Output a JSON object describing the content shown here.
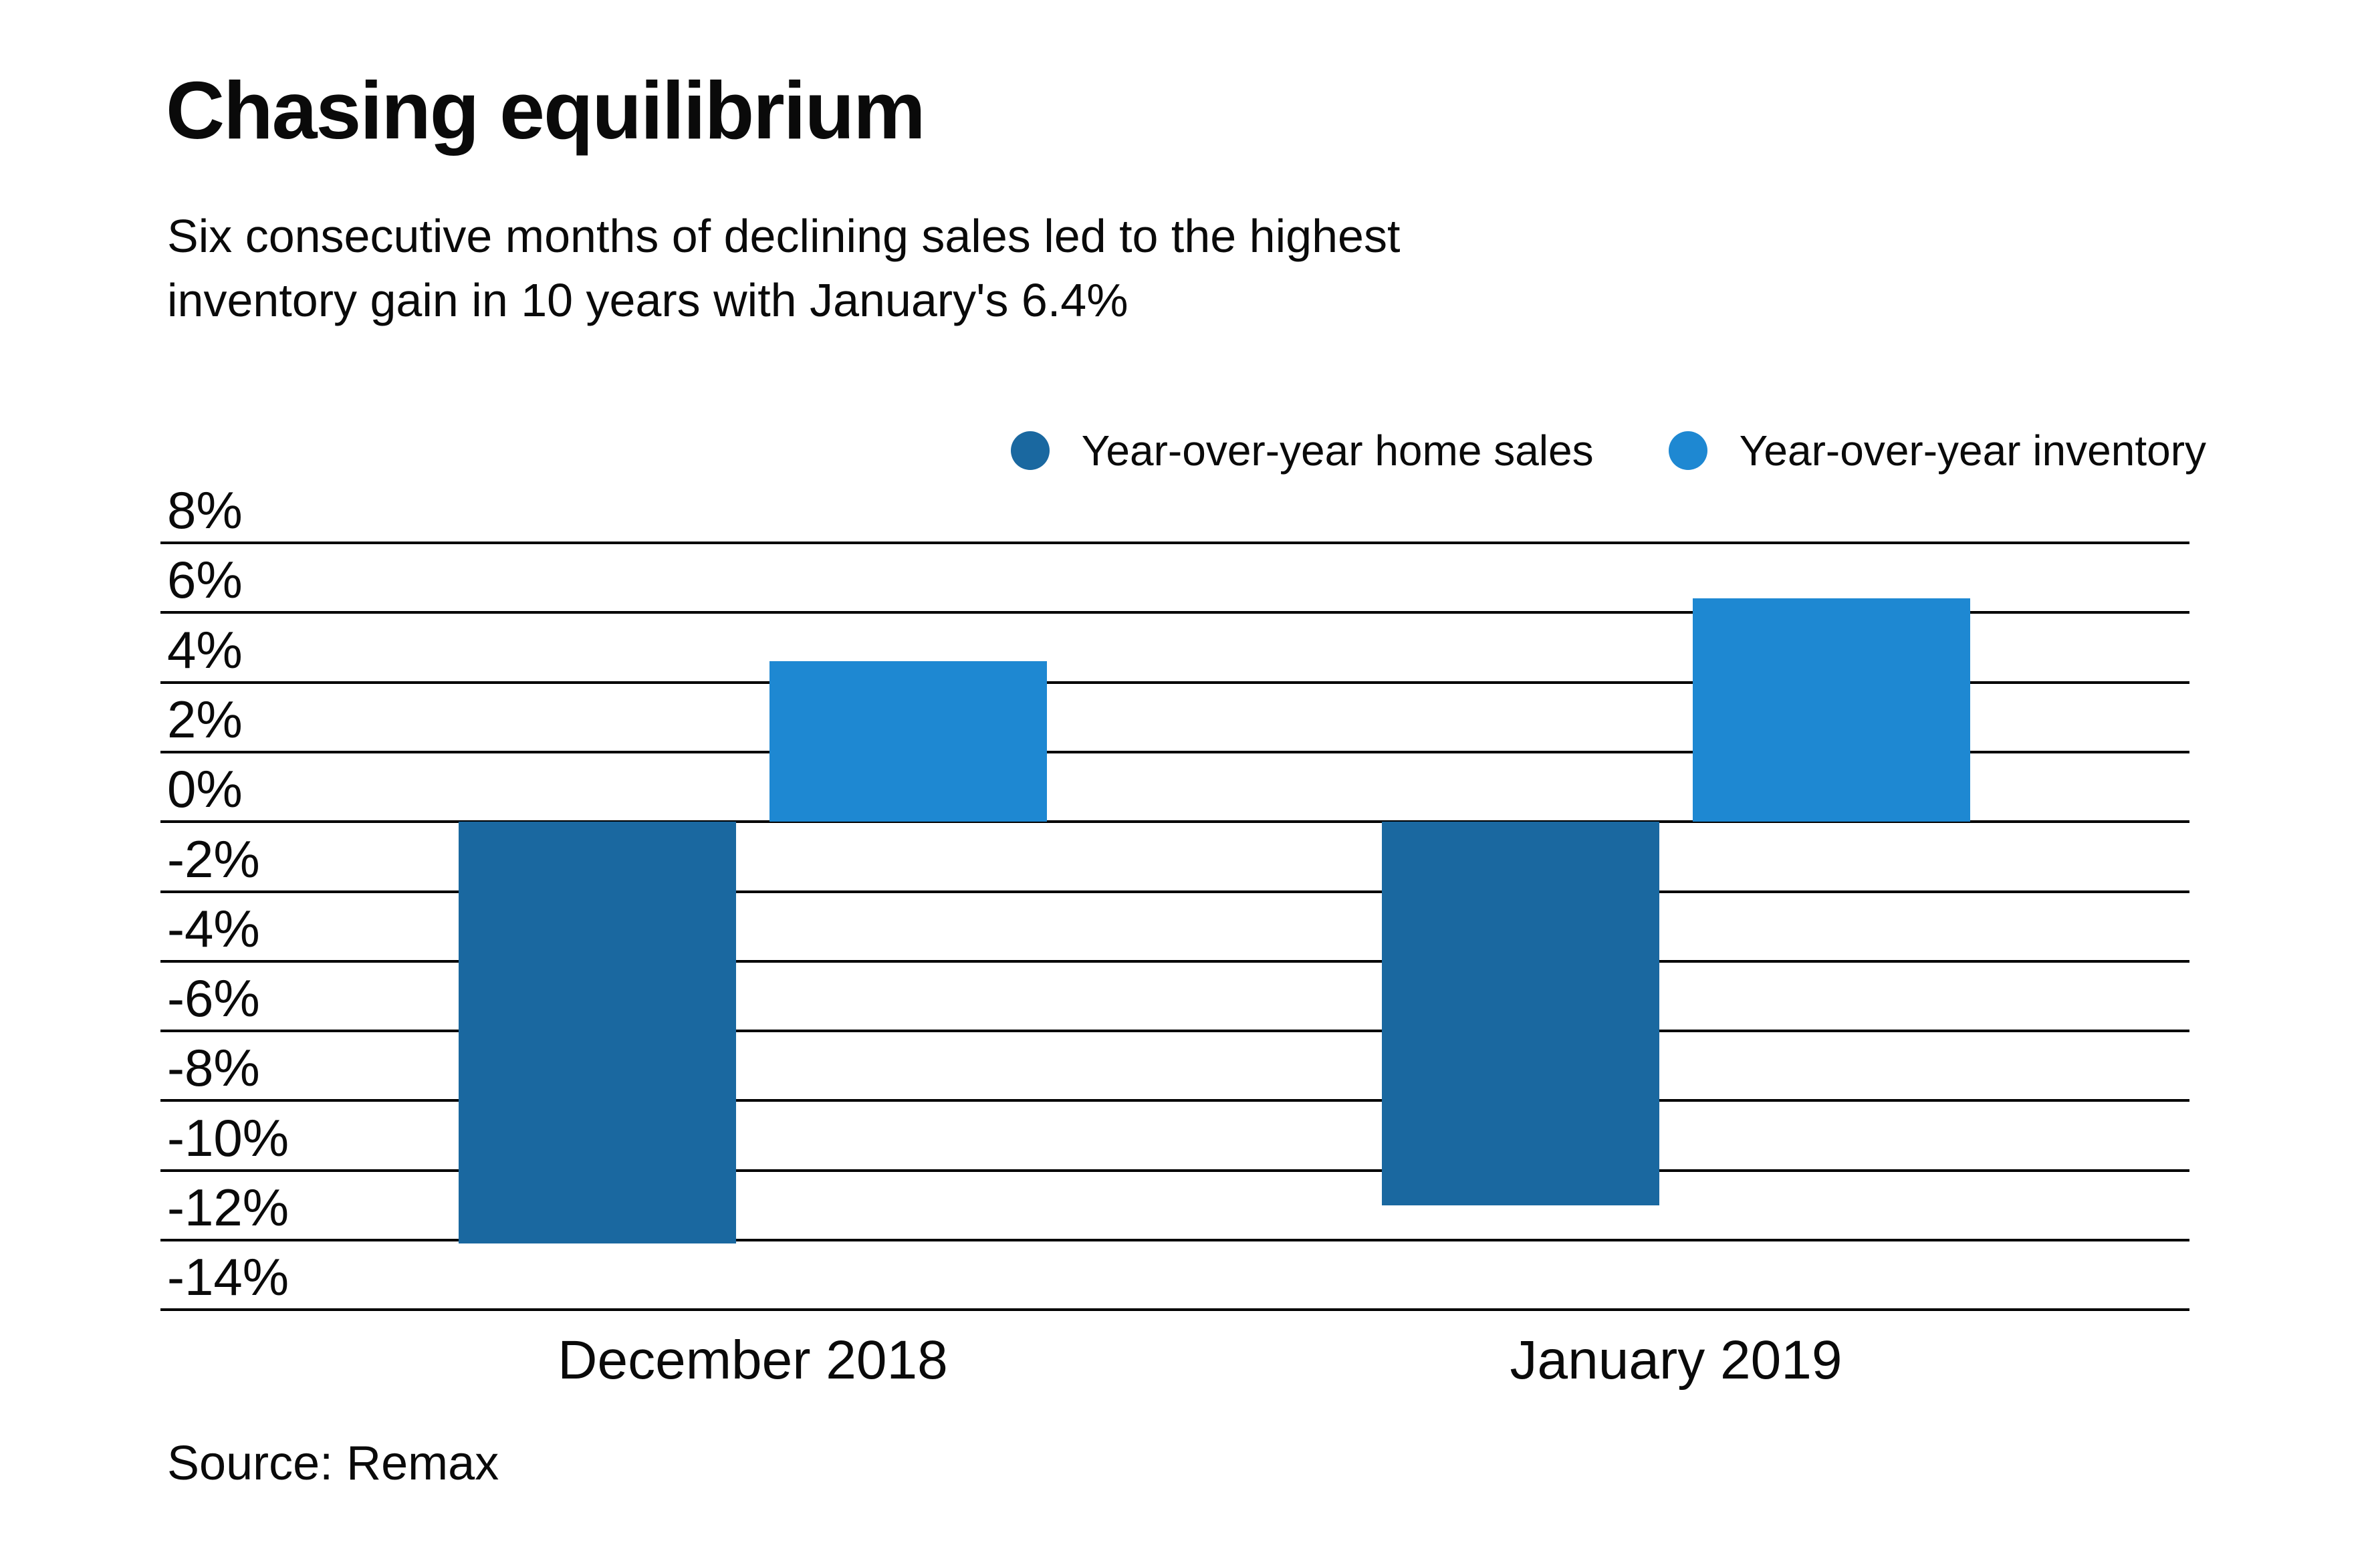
{
  "chart_data": {
    "type": "bar",
    "title": "Chasing equilibrium",
    "subtitle_lines": [
      "Six consecutive months of declining sales led to the highest",
      "inventory gain in 10 years with January's 6.4%"
    ],
    "source": "Source: Remax",
    "categories": [
      "December 2018",
      "January 2019"
    ],
    "series": [
      {
        "name": "Year-over-year home sales",
        "color": "#1A68A0",
        "values": [
          -12.1,
          -11
        ]
      },
      {
        "name": "Year-over-year inventory",
        "color": "#1E88D2",
        "values": [
          4.6,
          6.4
        ]
      }
    ],
    "yticks": [
      {
        "value": 8,
        "label": "8%"
      },
      {
        "value": 6,
        "label": "6%"
      },
      {
        "value": 4,
        "label": "4%"
      },
      {
        "value": 2,
        "label": "2%"
      },
      {
        "value": 0,
        "label": "0%"
      },
      {
        "value": -2,
        "label": "-2%"
      },
      {
        "value": -4,
        "label": "-4%"
      },
      {
        "value": -6,
        "label": "-6%"
      },
      {
        "value": -8,
        "label": "-8%"
      },
      {
        "value": -10,
        "label": "-10%"
      },
      {
        "value": -12,
        "label": "-12%"
      },
      {
        "value": -14,
        "label": "-14%"
      }
    ],
    "ylim": [
      -14,
      8
    ],
    "grid": true,
    "gridline_color": "#000000",
    "background_color": "#FFFFFF",
    "text_color": "#000000",
    "legend_position": "top-right"
  }
}
